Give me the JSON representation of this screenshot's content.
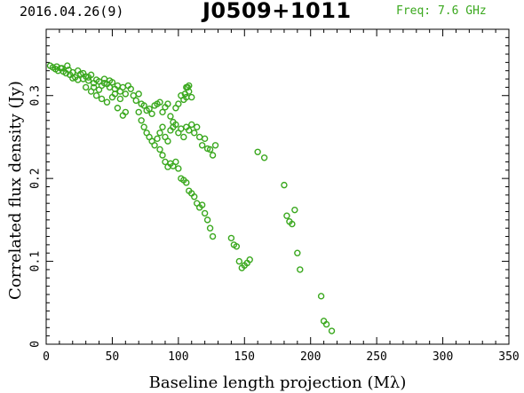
{
  "header": {
    "date": "2016.04.26(9)",
    "source": "J0509+1011",
    "freq": "Freq: 7.6 GHz"
  },
  "colors": {
    "points": "#3aa81e",
    "axes": "#000000",
    "freq_text": "#3aa81e"
  },
  "chart_data": {
    "type": "scatter",
    "xlabel": "Baseline length projection (Mλ)",
    "ylabel": "Correlated flux density (Jy)",
    "xlim": [
      0,
      350
    ],
    "ylim": [
      0,
      0.38
    ],
    "xticks": [
      0,
      50,
      100,
      150,
      200,
      250,
      300,
      350
    ],
    "yticks": [
      0,
      0.1,
      0.2,
      0.3
    ],
    "ytick_labels": [
      "0",
      "0.1",
      "0.2",
      "0.3"
    ],
    "grid": false,
    "series": [
      {
        "marker": "open-circle",
        "x": [
          3,
          5,
          7,
          9,
          11,
          13,
          15,
          17,
          18,
          20,
          22,
          24,
          26,
          28,
          30,
          32,
          34,
          36,
          38,
          40,
          42,
          44,
          46,
          48,
          50,
          52,
          54,
          56,
          58,
          60,
          8,
          12,
          16,
          20,
          24,
          28,
          32,
          36,
          40,
          44,
          48,
          52,
          56,
          60,
          30,
          34,
          38,
          42,
          46,
          50,
          54,
          58,
          62,
          64,
          66,
          68,
          70,
          72,
          74,
          76,
          78,
          80,
          82,
          84,
          86,
          88,
          90,
          92,
          94,
          96,
          98,
          100,
          102,
          104,
          106,
          108,
          110,
          70,
          72,
          74,
          76,
          78,
          80,
          82,
          84,
          86,
          88,
          90,
          92,
          94,
          96,
          98,
          100,
          102,
          104,
          106,
          108,
          110,
          112,
          114,
          116,
          118,
          120,
          122,
          124,
          126,
          128,
          86,
          88,
          90,
          92,
          94,
          96,
          98,
          100,
          102,
          104,
          106,
          108,
          110,
          112,
          114,
          116,
          118,
          120,
          122,
          124,
          126,
          140,
          142,
          144,
          146,
          148,
          150,
          152,
          154,
          160,
          165,
          180,
          182,
          184,
          186,
          188,
          190,
          192,
          105,
          106,
          107,
          108,
          208,
          210,
          212,
          216
        ],
        "y": [
          0.336,
          0.334,
          0.332,
          0.33,
          0.333,
          0.329,
          0.327,
          0.331,
          0.325,
          0.328,
          0.322,
          0.33,
          0.326,
          0.32,
          0.323,
          0.318,
          0.325,
          0.315,
          0.319,
          0.317,
          0.312,
          0.32,
          0.314,
          0.31,
          0.316,
          0.308,
          0.312,
          0.305,
          0.31,
          0.302,
          0.335,
          0.333,
          0.336,
          0.321,
          0.319,
          0.327,
          0.322,
          0.31,
          0.307,
          0.315,
          0.318,
          0.302,
          0.296,
          0.28,
          0.31,
          0.305,
          0.3,
          0.296,
          0.292,
          0.298,
          0.285,
          0.276,
          0.312,
          0.308,
          0.3,
          0.294,
          0.302,
          0.29,
          0.288,
          0.282,
          0.284,
          0.278,
          0.288,
          0.29,
          0.292,
          0.28,
          0.286,
          0.29,
          0.275,
          0.268,
          0.285,
          0.29,
          0.3,
          0.295,
          0.31,
          0.305,
          0.298,
          0.28,
          0.27,
          0.262,
          0.255,
          0.25,
          0.245,
          0.24,
          0.248,
          0.255,
          0.262,
          0.25,
          0.245,
          0.258,
          0.262,
          0.265,
          0.255,
          0.26,
          0.25,
          0.262,
          0.258,
          0.265,
          0.255,
          0.262,
          0.25,
          0.24,
          0.248,
          0.236,
          0.235,
          0.228,
          0.24,
          0.235,
          0.228,
          0.22,
          0.214,
          0.218,
          0.215,
          0.22,
          0.212,
          0.2,
          0.198,
          0.195,
          0.185,
          0.182,
          0.178,
          0.17,
          0.165,
          0.168,
          0.158,
          0.15,
          0.14,
          0.13,
          0.128,
          0.12,
          0.118,
          0.1,
          0.092,
          0.095,
          0.098,
          0.102,
          0.232,
          0.225,
          0.192,
          0.155,
          0.148,
          0.145,
          0.162,
          0.11,
          0.09,
          0.302,
          0.298,
          0.31,
          0.312,
          0.058,
          0.028,
          0.024,
          0.016
        ]
      }
    ]
  }
}
